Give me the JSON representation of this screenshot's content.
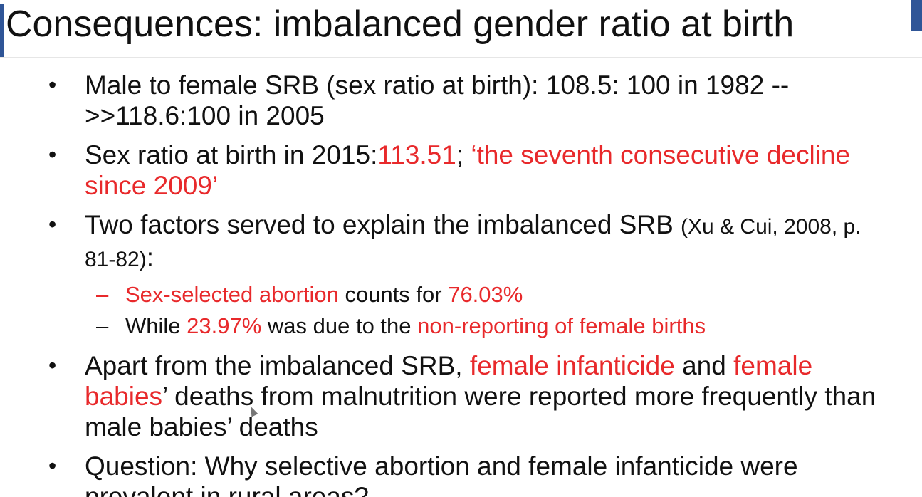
{
  "title": "Consequences: imbalanced gender ratio at birth",
  "bullet_glyph": "•",
  "dash_glyph": "–",
  "bullets": [
    {
      "text": "Male to female SRB (sex ratio at birth): 108.5: 100 in 1982 -->>118.6:100 in 2005"
    },
    {
      "part1": "Sex ratio at birth in 2015:",
      "part2": "113.51",
      "part3": "; ",
      "part4": "‘the seventh consecutive decline since 2009’"
    },
    {
      "part1": "Two factors served to explain the imbalanced SRB ",
      "ref": "(Xu & Cui, 2008, p. 81-82)",
      "part2": ":",
      "subs": [
        {
          "part1": "Sex-selected abortion",
          "part2": " counts for ",
          "part3": "76.03%"
        },
        {
          "part1": "While ",
          "part2": "23.97%",
          "part3": " was due to the ",
          "part4": "non-reporting of female births"
        }
      ]
    },
    {
      "part1": "Apart from the imbalanced SRB, ",
      "part2": "female infanticide",
      "part3": " and ",
      "part4": "female babies",
      "part5": "’ deaths from malnutrition were reported more frequently than male babies’ deaths"
    },
    {
      "text": "Question: Why selective abortion and female infanticide were prevalent in rural areas?"
    }
  ],
  "colors": {
    "accent": "#2f5597",
    "highlight": "#e8292b",
    "text": "#111111"
  }
}
